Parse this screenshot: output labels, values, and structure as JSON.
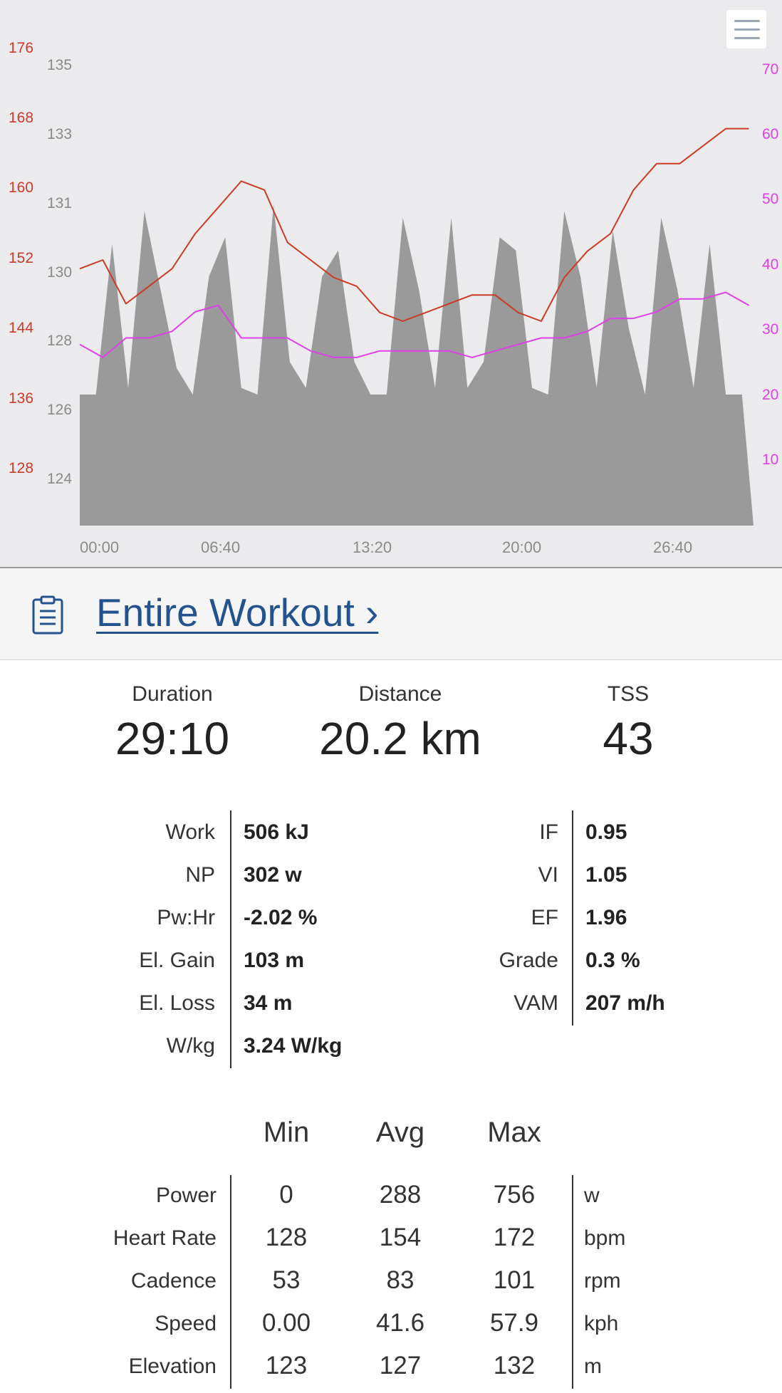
{
  "chart": {
    "hr_ticks": [
      "176",
      "168",
      "160",
      "152",
      "144",
      "136",
      "128"
    ],
    "elev_ticks": [
      "135",
      "133",
      "131",
      "130",
      "128",
      "126",
      "124"
    ],
    "cadence_ticks": [
      "70",
      "60",
      "50",
      "40",
      "30",
      "20",
      "10"
    ],
    "time_ticks": [
      "00:00",
      "06:40",
      "13:20",
      "20:00",
      "26:40"
    ],
    "colors": {
      "heart_rate": "#cc3a28",
      "cadence": "#e040e8",
      "power_fill": "#9a9a9a",
      "elevation_axis": "#8a8a8a"
    }
  },
  "chart_data": {
    "type": "area",
    "x_unit": "minutes",
    "series": [
      {
        "axis": "left-outer",
        "color": "#cc3a28",
        "x": [
          0,
          1,
          2,
          3,
          4,
          5,
          6,
          7,
          8,
          9,
          10,
          11,
          12,
          13,
          14,
          15,
          16,
          17,
          18,
          19,
          20,
          21,
          22,
          23,
          24,
          25,
          26,
          27,
          28,
          29
        ],
        "y": [
          151,
          152,
          147,
          149,
          151,
          155,
          158,
          161,
          160,
          154,
          152,
          150,
          149,
          146,
          145,
          146,
          147,
          148,
          148,
          146,
          145,
          150,
          153,
          155,
          160,
          163,
          163,
          165,
          167,
          167
        ]
      },
      {
        "axis": "right",
        "color": "#e040e8",
        "x": [
          0,
          1,
          2,
          3,
          4,
          5,
          6,
          7,
          8,
          9,
          10,
          11,
          12,
          13,
          14,
          15,
          16,
          17,
          18,
          19,
          20,
          21,
          22,
          23,
          24,
          25,
          26,
          27,
          28,
          29
        ],
        "y": [
          28,
          26,
          29,
          29,
          30,
          33,
          34,
          29,
          29,
          29,
          27,
          26,
          26,
          27,
          27,
          27,
          27,
          26,
          27,
          28,
          29,
          29,
          30,
          32,
          32,
          33,
          35,
          35,
          36,
          34
        ]
      },
      {
        "axis": "none",
        "kind": "area",
        "color": "#9a9a9a",
        "x": [
          0,
          0.7,
          1.4,
          2.1,
          2.8,
          3.5,
          4.2,
          4.9,
          5.6,
          6.3,
          7.0,
          7.7,
          8.4,
          9.1,
          9.8,
          10.5,
          11.2,
          11.9,
          12.6,
          13.3,
          14.0,
          14.7,
          15.4,
          16.1,
          16.8,
          17.5,
          18.2,
          18.9,
          19.6,
          20.3,
          21.0,
          21.7,
          22.4,
          23.1,
          23.8,
          24.5,
          25.2,
          25.9,
          26.6,
          27.3,
          28.0,
          28.7
        ],
        "y": [
          200,
          200,
          430,
          210,
          480,
          360,
          240,
          200,
          380,
          440,
          210,
          200,
          490,
          250,
          210,
          380,
          420,
          250,
          200,
          200,
          470,
          360,
          210,
          470,
          210,
          250,
          440,
          420,
          210,
          200,
          480,
          380,
          210,
          450,
          300,
          200,
          470,
          360,
          210,
          430,
          200,
          200
        ]
      }
    ],
    "xlim": [
      0,
      29.2
    ]
  },
  "section": {
    "title": "Entire Workout  ›"
  },
  "summary": [
    {
      "label": "Duration",
      "value": "29:10"
    },
    {
      "label": "Distance",
      "value": "20.2 km"
    },
    {
      "label": "TSS",
      "value": "43"
    }
  ],
  "metrics_left": [
    {
      "label": "Work",
      "value": "506 kJ"
    },
    {
      "label": "NP",
      "value": "302 w"
    },
    {
      "label": "Pw:Hr",
      "value": "-2.02 %"
    },
    {
      "label": "El. Gain",
      "value": "103 m"
    },
    {
      "label": "El. Loss",
      "value": "34 m"
    },
    {
      "label": "W/kg",
      "value": "3.24 W/kg"
    }
  ],
  "metrics_right": [
    {
      "label": "IF",
      "value": "0.95"
    },
    {
      "label": "VI",
      "value": "1.05"
    },
    {
      "label": "EF",
      "value": "1.96"
    },
    {
      "label": "Grade",
      "value": "0.3 %"
    },
    {
      "label": "VAM",
      "value": "207 m/h"
    }
  ],
  "stats": {
    "headers": [
      "Min",
      "Avg",
      "Max"
    ],
    "rows": [
      {
        "label": "Power",
        "min": "0",
        "avg": "288",
        "max": "756",
        "unit": "w"
      },
      {
        "label": "Heart Rate",
        "min": "128",
        "avg": "154",
        "max": "172",
        "unit": "bpm"
      },
      {
        "label": "Cadence",
        "min": "53",
        "avg": "83",
        "max": "101",
        "unit": "rpm"
      },
      {
        "label": "Speed",
        "min": "0.00",
        "avg": "41.6",
        "max": "57.9",
        "unit": "kph"
      },
      {
        "label": "Elevation",
        "min": "123",
        "avg": "127",
        "max": "132",
        "unit": "m"
      }
    ]
  }
}
